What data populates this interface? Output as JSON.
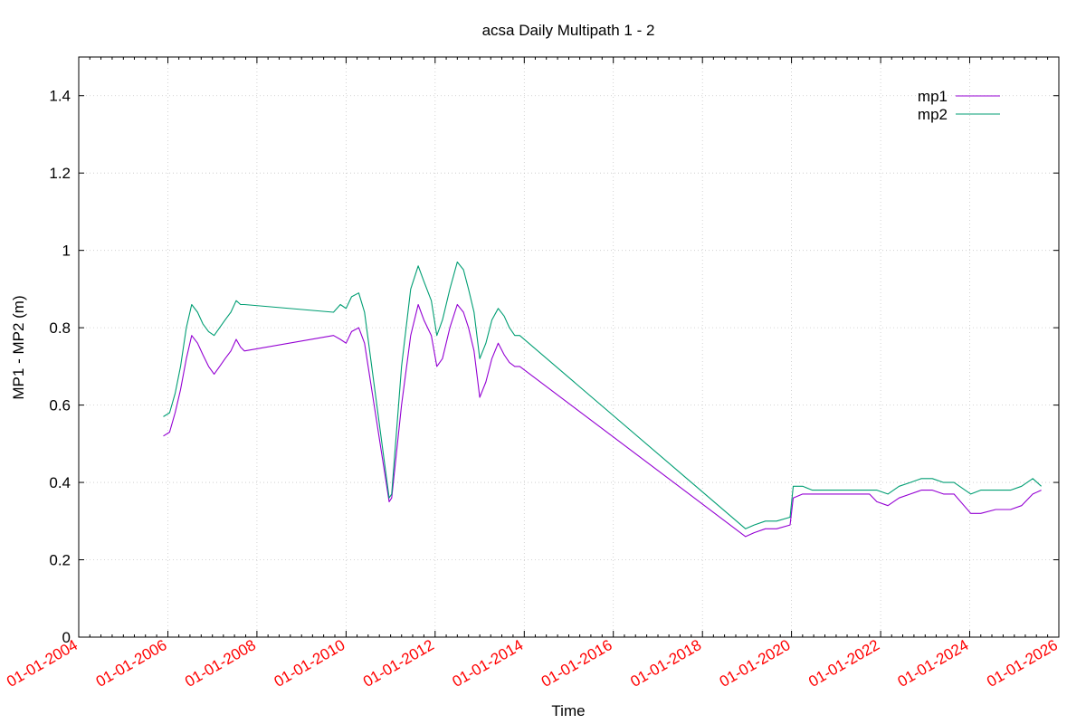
{
  "chart_data": {
    "type": "line",
    "title": "acsa Daily Multipath 1 - 2",
    "xlabel": "Time",
    "ylabel": "MP1 - MP2 (m)",
    "x_is_date": true,
    "xlim": [
      "2004-01-01",
      "2026-01-01"
    ],
    "ylim": [
      0,
      1.5
    ],
    "yticks": [
      0,
      0.2,
      0.4,
      0.6,
      0.8,
      1,
      1.2,
      1.4
    ],
    "ytick_labels": [
      "0",
      "0.2",
      "0.4",
      "0.6",
      "0.8",
      "1",
      "1.2",
      "1.4"
    ],
    "xticks": [
      "2004-01-01",
      "2006-01-01",
      "2008-01-01",
      "2010-01-01",
      "2012-01-01",
      "2014-01-01",
      "2016-01-01",
      "2018-01-01",
      "2020-01-01",
      "2022-01-01",
      "2024-01-01",
      "2026-01-01"
    ],
    "xtick_labels": [
      "01-01-2004",
      "01-01-2006",
      "01-01-2008",
      "01-01-2010",
      "01-01-2012",
      "01-01-2014",
      "01-01-2016",
      "01-01-2018",
      "01-01-2020",
      "01-01-2022",
      "01-01-2024",
      "01-01-2026"
    ],
    "grid": true,
    "legend_position": "top-right",
    "tick_label_color": "#ff0000",
    "series": [
      {
        "name": "mp1",
        "color": "#9400d3",
        "x": [
          "2005-11-25",
          "2006-01-15",
          "2006-03-01",
          "2006-04-15",
          "2006-06-01",
          "2006-07-15",
          "2006-09-01",
          "2006-10-15",
          "2006-12-01",
          "2007-01-15",
          "2007-03-01",
          "2007-04-15",
          "2007-06-01",
          "2007-07-15",
          "2007-08-20",
          "2007-09-20",
          "2009-09-20",
          "2009-11-15",
          "2010-01-01",
          "2010-02-15",
          "2010-04-15",
          "2010-06-01",
          "2010-12-20",
          "2011-01-10",
          "2011-04-01",
          "2011-06-15",
          "2011-08-15",
          "2011-10-01",
          "2011-12-01",
          "2012-01-15",
          "2012-03-01",
          "2012-05-01",
          "2012-07-01",
          "2012-08-20",
          "2012-10-01",
          "2012-11-15",
          "2013-01-01",
          "2013-02-20",
          "2013-04-10",
          "2013-06-01",
          "2013-07-20",
          "2013-09-01",
          "2013-10-15",
          "2013-11-25",
          "2018-12-20",
          "2019-03-01",
          "2019-06-01",
          "2019-09-01",
          "2019-12-20",
          "2020-01-15",
          "2020-04-01",
          "2020-06-20",
          "2021-10-01",
          "2021-12-01",
          "2022-03-01",
          "2022-06-01",
          "2022-09-01",
          "2022-12-01",
          "2023-03-01",
          "2023-06-01",
          "2023-08-25",
          "2024-01-10",
          "2024-04-01",
          "2024-08-01",
          "2024-12-01",
          "2025-03-01",
          "2025-06-01",
          "2025-08-10"
        ],
        "y": [
          0.52,
          0.53,
          0.58,
          0.64,
          0.72,
          0.78,
          0.76,
          0.73,
          0.7,
          0.68,
          0.7,
          0.72,
          0.74,
          0.77,
          0.75,
          0.74,
          0.78,
          0.77,
          0.76,
          0.79,
          0.8,
          0.76,
          0.35,
          0.36,
          0.6,
          0.78,
          0.86,
          0.82,
          0.78,
          0.7,
          0.72,
          0.8,
          0.86,
          0.84,
          0.8,
          0.74,
          0.62,
          0.66,
          0.72,
          0.76,
          0.73,
          0.71,
          0.7,
          0.7,
          0.26,
          0.27,
          0.28,
          0.28,
          0.29,
          0.36,
          0.37,
          0.37,
          0.37,
          0.35,
          0.34,
          0.36,
          0.37,
          0.38,
          0.38,
          0.37,
          0.37,
          0.32,
          0.32,
          0.33,
          0.33,
          0.34,
          0.37,
          0.38
        ]
      },
      {
        "name": "mp2",
        "color": "#009e73",
        "x": [
          "2005-11-25",
          "2006-01-15",
          "2006-03-01",
          "2006-04-15",
          "2006-06-01",
          "2006-07-15",
          "2006-09-01",
          "2006-10-15",
          "2006-12-01",
          "2007-01-15",
          "2007-03-01",
          "2007-04-15",
          "2007-06-01",
          "2007-07-15",
          "2007-08-20",
          "2007-09-20",
          "2009-09-20",
          "2009-11-15",
          "2010-01-01",
          "2010-02-15",
          "2010-04-15",
          "2010-06-01",
          "2010-12-20",
          "2011-01-10",
          "2011-04-01",
          "2011-06-15",
          "2011-08-15",
          "2011-10-01",
          "2011-12-01",
          "2012-01-15",
          "2012-03-01",
          "2012-05-01",
          "2012-07-01",
          "2012-08-20",
          "2012-10-01",
          "2012-11-15",
          "2013-01-01",
          "2013-02-20",
          "2013-04-10",
          "2013-06-01",
          "2013-07-20",
          "2013-09-01",
          "2013-10-15",
          "2013-11-25",
          "2018-12-20",
          "2019-03-01",
          "2019-06-01",
          "2019-09-01",
          "2019-12-20",
          "2020-01-15",
          "2020-04-01",
          "2020-06-20",
          "2021-10-01",
          "2021-12-01",
          "2022-03-01",
          "2022-06-01",
          "2022-09-01",
          "2022-12-01",
          "2023-03-01",
          "2023-06-01",
          "2023-08-25",
          "2024-01-10",
          "2024-04-01",
          "2024-08-01",
          "2024-12-01",
          "2025-03-01",
          "2025-06-01",
          "2025-08-10"
        ],
        "y": [
          0.57,
          0.58,
          0.63,
          0.7,
          0.8,
          0.86,
          0.84,
          0.81,
          0.79,
          0.78,
          0.8,
          0.82,
          0.84,
          0.87,
          0.86,
          0.86,
          0.84,
          0.86,
          0.85,
          0.88,
          0.89,
          0.84,
          0.36,
          0.37,
          0.7,
          0.9,
          0.96,
          0.92,
          0.87,
          0.78,
          0.82,
          0.9,
          0.97,
          0.95,
          0.9,
          0.84,
          0.72,
          0.76,
          0.82,
          0.85,
          0.83,
          0.8,
          0.78,
          0.78,
          0.28,
          0.29,
          0.3,
          0.3,
          0.31,
          0.39,
          0.39,
          0.38,
          0.38,
          0.38,
          0.37,
          0.39,
          0.4,
          0.41,
          0.41,
          0.4,
          0.4,
          0.37,
          0.38,
          0.38,
          0.38,
          0.39,
          0.41,
          0.39
        ]
      }
    ]
  }
}
